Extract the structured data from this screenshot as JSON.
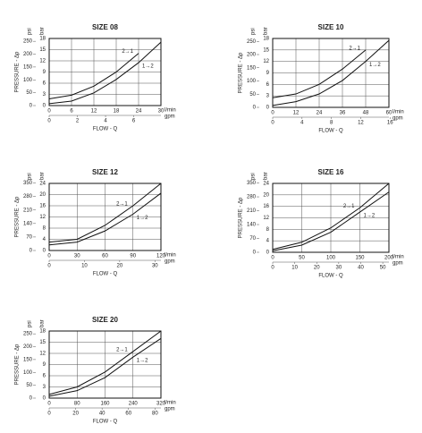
{
  "chart_data": [
    {
      "type": "line",
      "title": "SIZE 08",
      "xlabel": "FLOW - Q",
      "ylabel": "PRESSURE - Δp",
      "yunit": "bar",
      "y2unit": "psi",
      "xunit": "l/min",
      "x2unit": "gpm",
      "x": [
        0,
        6,
        12,
        18,
        24,
        30
      ],
      "series": [
        {
          "name": "2→1",
          "color": "#111111",
          "values": [
            1.8,
            2.8,
            5.2,
            9,
            14,
            null
          ]
        },
        {
          "name": "1→2",
          "color": "#111111",
          "values": [
            0.5,
            1.2,
            3.4,
            7,
            11.5,
            17
          ]
        }
      ],
      "xlim": [
        0,
        30
      ],
      "xticks": [
        0,
        6,
        12,
        18,
        24,
        30
      ],
      "x2lim": [
        0,
        7.93
      ],
      "x2ticks": [
        0,
        2,
        4,
        6
      ],
      "ylim": [
        0,
        18
      ],
      "yticks": [
        0,
        3,
        6,
        9,
        12,
        15,
        18
      ],
      "y2lim": [
        0,
        261
      ],
      "y2ticks": [
        0,
        50,
        100,
        150,
        200,
        250
      ],
      "grid": true
    },
    {
      "type": "line",
      "title": "SIZE 10",
      "xlabel": "FLOW - Q",
      "ylabel": "PRESSURE - Δp",
      "yunit": "bar",
      "y2unit": "psi",
      "xunit": "l/min",
      "x2unit": "gpm",
      "x": [
        0,
        12,
        24,
        36,
        48,
        60
      ],
      "series": [
        {
          "name": "2→1",
          "color": "#111111",
          "values": [
            2.5,
            3.5,
            6,
            10,
            15,
            null
          ]
        },
        {
          "name": "1→2",
          "color": "#111111",
          "values": [
            0.5,
            1.5,
            3.5,
            7,
            12,
            17.5
          ]
        }
      ],
      "xlim": [
        0,
        60
      ],
      "xticks": [
        0,
        12,
        24,
        36,
        48,
        60
      ],
      "x2lim": [
        0,
        15.85
      ],
      "x2ticks": [
        0,
        4,
        8,
        12,
        16
      ],
      "ylim": [
        0,
        18
      ],
      "yticks": [
        0,
        3,
        6,
        9,
        12,
        15,
        18
      ],
      "y2lim": [
        0,
        261
      ],
      "y2ticks": [
        0,
        50,
        100,
        150,
        200,
        250
      ],
      "grid": true
    },
    {
      "type": "line",
      "title": "SIZE 12",
      "xlabel": "FLOW - Q",
      "ylabel": "PRESSURE - Δp",
      "yunit": "bar",
      "y2unit": "psi",
      "xunit": "l/min",
      "x2unit": "gpm",
      "x": [
        0,
        30,
        60,
        90,
        120
      ],
      "series": [
        {
          "name": "2→1",
          "color": "#111111",
          "values": [
            3,
            4,
            9,
            16,
            24
          ]
        },
        {
          "name": "1→2",
          "color": "#111111",
          "values": [
            2,
            3,
            7,
            13,
            20.5
          ]
        }
      ],
      "xlim": [
        0,
        120
      ],
      "xticks": [
        0,
        30,
        60,
        90,
        120
      ],
      "x2lim": [
        0,
        31.7
      ],
      "x2ticks": [
        0,
        10,
        20,
        30
      ],
      "ylim": [
        0,
        24
      ],
      "yticks": [
        0,
        4,
        8,
        12,
        16,
        20,
        24
      ],
      "y2lim": [
        0,
        348
      ],
      "y2ticks": [
        0,
        70,
        140,
        210,
        280,
        350
      ],
      "grid": true
    },
    {
      "type": "line",
      "title": "SIZE 16",
      "xlabel": "FLOW - Q",
      "ylabel": "PRESSURE - Δp",
      "yunit": "bar",
      "y2unit": "psi",
      "xunit": "l/min",
      "x2unit": "gpm",
      "x": [
        0,
        50,
        100,
        150,
        200
      ],
      "series": [
        {
          "name": "2→1",
          "color": "#111111",
          "values": [
            1,
            3.5,
            8.5,
            15.5,
            24
          ]
        },
        {
          "name": "1→2",
          "color": "#111111",
          "values": [
            0.5,
            2.5,
            7,
            14,
            21
          ]
        }
      ],
      "xlim": [
        0,
        200
      ],
      "xticks": [
        0,
        50,
        100,
        150,
        200
      ],
      "x2lim": [
        0,
        52.8
      ],
      "x2ticks": [
        0,
        10,
        20,
        30,
        40,
        50
      ],
      "ylim": [
        0,
        24
      ],
      "yticks": [
        0,
        4,
        8,
        12,
        16,
        20,
        24
      ],
      "y2lim": [
        0,
        348
      ],
      "y2ticks": [
        0,
        70,
        140,
        210,
        280,
        350
      ],
      "grid": true
    },
    {
      "type": "line",
      "title": "SIZE 20",
      "xlabel": "FLOW - Q",
      "ylabel": "PRESSURE - Δp",
      "yunit": "bar",
      "y2unit": "psi",
      "xunit": "l/min",
      "x2unit": "gpm",
      "x": [
        0,
        80,
        160,
        240,
        320
      ],
      "series": [
        {
          "name": "2→1",
          "color": "#111111",
          "values": [
            1,
            3,
            7,
            12.5,
            18
          ]
        },
        {
          "name": "1→2",
          "color": "#111111",
          "values": [
            0.5,
            2,
            5.5,
            11,
            16
          ]
        }
      ],
      "xlim": [
        0,
        320
      ],
      "xticks": [
        0,
        80,
        160,
        240,
        320
      ],
      "x2lim": [
        0,
        84.5
      ],
      "x2ticks": [
        0,
        20,
        40,
        60,
        80
      ],
      "ylim": [
        0,
        18
      ],
      "yticks": [
        0,
        3,
        6,
        9,
        12,
        15,
        18
      ],
      "y2lim": [
        0,
        261
      ],
      "y2ticks": [
        0,
        50,
        100,
        150,
        200,
        250
      ],
      "grid": true
    }
  ]
}
